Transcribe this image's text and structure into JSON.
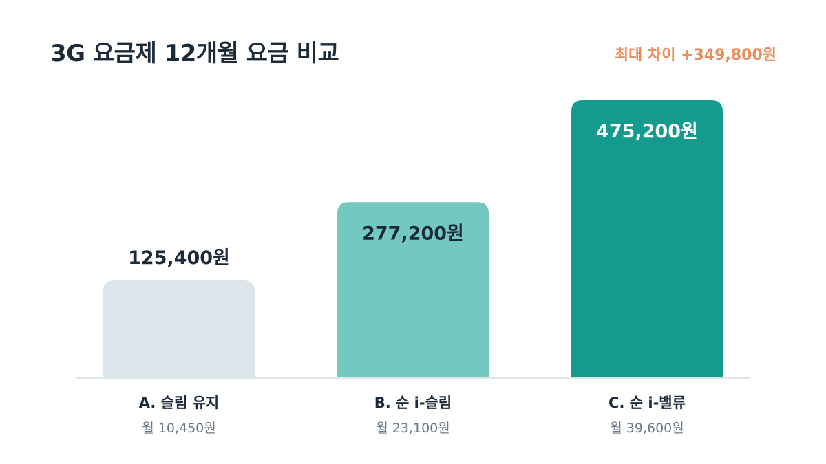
{
  "header": {
    "title": "3G 요금제 12개월 요금 비교",
    "max_diff": "최대 차이 +349,800원"
  },
  "colors": {
    "accent": "#ec8a5a",
    "title": "#1c2a3a",
    "subtext": "#6b7885",
    "baseline": "#dde8e6"
  },
  "chart_data": {
    "type": "bar",
    "title": "3G 요금제 12개월 요금 비교",
    "categories": [
      "A. 슬림 유지",
      "B. 순 i-슬림",
      "C. 순 i-밸류"
    ],
    "values": [
      125400,
      277200,
      475200
    ],
    "value_labels": [
      "125,400원",
      "277,200원",
      "475,200원"
    ],
    "monthly_labels": [
      "월 10,450원",
      "월 23,100원",
      "월 39,600원"
    ],
    "bar_colors": [
      "#dde5ea",
      "#73c8bf",
      "#159b8d"
    ],
    "value_label_colors": [
      "#1c2a3a",
      "#1c2a3a",
      "#ffffff"
    ],
    "annotation": "최대 차이 +349,800원",
    "ylim": [
      0,
      475200
    ],
    "grid": false,
    "legend": "none"
  }
}
